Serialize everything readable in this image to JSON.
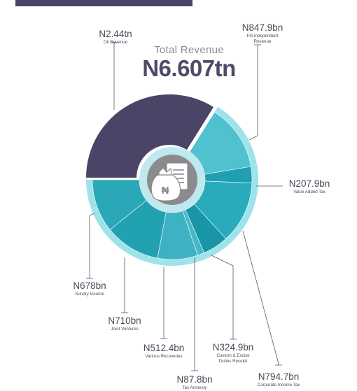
{
  "header": {
    "total_label": "Total Revenue",
    "total_value": "N6.607tn"
  },
  "center_icon": "money-bag-document-icon",
  "colors": {
    "banner": "#4a4566",
    "dark_slice": "#4a4566",
    "teal_shades": [
      "#4fc1cf",
      "#1f9fb0",
      "#2aabbb",
      "#1896a8",
      "#45b9c7",
      "#3eb2c2",
      "#22a1b1",
      "#2aa8b8",
      "#1a98aa",
      "#34b0c0"
    ],
    "rim": "#9ee3ea",
    "hub_ring": "#bfe9ee",
    "hub": "#8b8b8f"
  },
  "chart_data": {
    "type": "pie",
    "title": "Total Revenue",
    "total": "N6.607tn",
    "slices": [
      {
        "value_label": "N2.44tn",
        "name": "Oil Revenue",
        "value_bn": 2440
      },
      {
        "value_label": "N847.9bn",
        "name": "FG Independent Revenue",
        "value_bn": 847.9
      },
      {
        "value_label": "N207.9bn",
        "name": "Value Added Tax",
        "value_bn": 207.9
      },
      {
        "value_label": "N794.7bn",
        "name": "Corporate Income Tax",
        "value_bn": 794.7
      },
      {
        "value_label": "N324.9bn",
        "name": "Custom & Excise Duties Receipt",
        "value_bn": 324.9
      },
      {
        "value_label": "N87.8bn",
        "name": "Tax Amnesty",
        "value_bn": 87.8
      },
      {
        "value_label": "N512.4bn",
        "name": "Various Recoveries",
        "value_bn": 512.4
      },
      {
        "value_label": "N710bn",
        "name": "Joint Ventures",
        "value_bn": 710
      },
      {
        "value_label": "N678bn",
        "name": "Sundry Income",
        "value_bn": 678
      }
    ]
  }
}
